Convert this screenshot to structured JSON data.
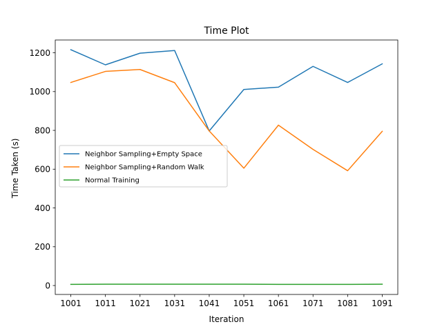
{
  "chart_data": {
    "type": "line",
    "title": "Time Plot",
    "xlabel": "Iteration",
    "ylabel": "Time Taken (s)",
    "x": [
      1001,
      1011,
      1021,
      1031,
      1041,
      1051,
      1061,
      1071,
      1081,
      1091
    ],
    "xticks": [
      "1001",
      "1011",
      "1021",
      "1031",
      "1041",
      "1051",
      "1061",
      "1071",
      "1081",
      "1091"
    ],
    "yticks": [
      0,
      200,
      400,
      600,
      800,
      1000,
      1200
    ],
    "ylim": [
      -46,
      1266
    ],
    "grid": false,
    "legend_position": "center-left",
    "series": [
      {
        "name": "Neighbor Sampling+Empty Space",
        "color": "#1f77b4",
        "values": [
          1216,
          1138,
          1198,
          1212,
          797,
          1011,
          1023,
          1130,
          1047,
          1143
        ]
      },
      {
        "name": "Neighbor Sampling+Random Walk",
        "color": "#ff7f0e",
        "values": [
          1047,
          1104,
          1114,
          1046,
          797,
          605,
          827,
          702,
          592,
          795
        ]
      },
      {
        "name": "Normal Training",
        "color": "#2ca02c",
        "values": [
          6,
          7,
          7,
          7,
          7,
          7,
          6,
          6,
          6,
          7
        ]
      }
    ]
  }
}
